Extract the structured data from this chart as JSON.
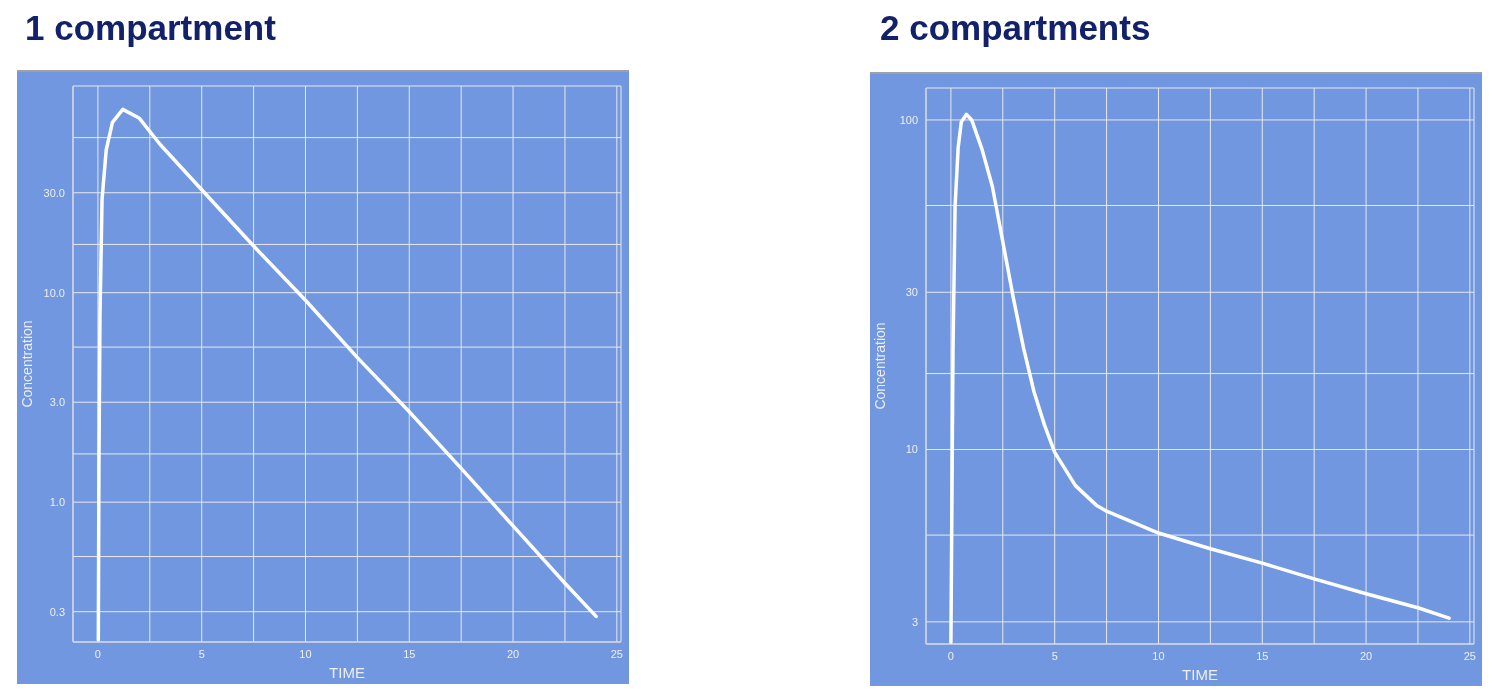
{
  "chart_data": [
    {
      "type": "line",
      "title": "1 compartment",
      "xlabel": "TIME",
      "ylabel": "Concentration",
      "log": "y",
      "grid": true,
      "x": [
        0.02,
        0.05,
        0.1,
        0.2,
        0.4,
        0.7,
        1.2,
        2,
        3,
        5,
        7.5,
        10,
        12.5,
        15,
        17.5,
        20,
        22.5,
        24
      ],
      "series": [
        {
          "color": "#ffffff",
          "values": [
            0.22,
            1.5,
            7.8,
            28,
            48,
            65,
            75,
            68,
            51,
            31,
            16.7,
            9.2,
            4.9,
            2.7,
            1.45,
            0.77,
            0.41,
            0.285
          ]
        }
      ],
      "xlim": [
        -1.2,
        25.2
      ],
      "ylim": [
        0.215,
        97
      ],
      "xticks": [
        0,
        {
          "value": 2.5,
          "label": null
        },
        5,
        {
          "value": 7.5,
          "label": null
        },
        10,
        {
          "value": 12.5,
          "label": null
        },
        15,
        {
          "value": 17.5,
          "label": null
        },
        20,
        {
          "value": 22.5,
          "label": null
        },
        25
      ],
      "yticks": [
        {
          "value": 0.3,
          "label": "0.3"
        },
        {
          "value": 0.55,
          "label": null
        },
        {
          "value": 1,
          "label": "1.0"
        },
        {
          "value": 1.7,
          "label": null
        },
        {
          "value": 3,
          "label": "3.0"
        },
        {
          "value": 5.5,
          "label": null
        },
        {
          "value": 10,
          "label": "10.0"
        },
        {
          "value": 17,
          "label": null
        },
        {
          "value": 30,
          "label": "30.0"
        },
        {
          "value": 55,
          "label": null
        }
      ]
    },
    {
      "type": "line",
      "title": "2 compartments",
      "xlabel": "TIME",
      "ylabel": "Concentration",
      "log": "y",
      "grid": true,
      "x": [
        0,
        0.1,
        0.2,
        0.35,
        0.5,
        0.75,
        1,
        1.5,
        2,
        2.5,
        3,
        3.5,
        4,
        4.5,
        5,
        6,
        7,
        7.5,
        10,
        12.5,
        15,
        17.5,
        20,
        22.5,
        24
      ],
      "series": [
        {
          "color": "#ffffff",
          "values": [
            2.6,
            19.8,
            54.6,
            82.5,
            98.6,
            104,
            100,
            81.4,
            62.7,
            42.7,
            29,
            20.3,
            15,
            11.9,
            9.8,
            7.77,
            6.78,
            6.5,
            5.58,
            5,
            4.52,
            4.05,
            3.65,
            3.31,
            3.08
          ]
        }
      ],
      "xlim": [
        -1.2,
        25.2
      ],
      "ylim": [
        2.57,
        125
      ],
      "xticks": [
        0,
        {
          "value": 2.5,
          "label": null
        },
        5,
        {
          "value": 7.5,
          "label": null
        },
        10,
        {
          "value": 12.5,
          "label": null
        },
        15,
        {
          "value": 17.5,
          "label": null
        },
        20,
        {
          "value": 22.5,
          "label": null
        },
        25
      ],
      "yticks": [
        3,
        {
          "value": 5.5,
          "label": null
        },
        10,
        {
          "value": 17,
          "label": null
        },
        30,
        {
          "value": 55,
          "label": null
        },
        100
      ]
    }
  ]
}
